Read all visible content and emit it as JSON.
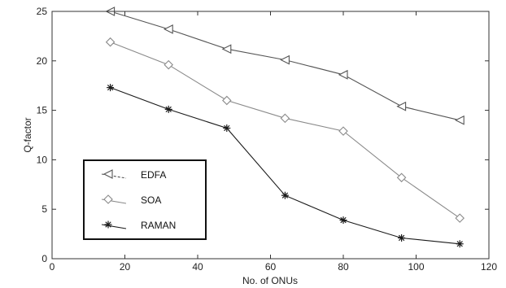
{
  "chart_data": {
    "type": "line",
    "xlabel": "No. of ONUs",
    "ylabel": "Q-factor",
    "xlim": [
      0,
      120
    ],
    "ylim": [
      0,
      25
    ],
    "xticks": [
      0,
      20,
      40,
      60,
      80,
      100,
      120
    ],
    "yticks": [
      0,
      5,
      10,
      15,
      20,
      25
    ],
    "grid": false,
    "legend_position": "bottom-left",
    "x": [
      16,
      32,
      48,
      64,
      80,
      96,
      112
    ],
    "series": [
      {
        "name": "EDFA",
        "marker": "triangle-left",
        "color": "#555555",
        "dash": "dashed",
        "values": [
          25.0,
          23.2,
          21.2,
          20.1,
          18.6,
          15.4,
          14.0
        ]
      },
      {
        "name": "SOA",
        "marker": "diamond",
        "color": "#8a8a8a",
        "dash": "solid",
        "values": [
          21.9,
          19.6,
          16.0,
          14.2,
          12.9,
          8.2,
          4.1
        ]
      },
      {
        "name": "RAMAN",
        "marker": "star",
        "color": "#1a1a1a",
        "dash": "solid",
        "values": [
          17.3,
          15.1,
          13.2,
          6.4,
          3.9,
          2.1,
          1.5
        ]
      }
    ]
  }
}
